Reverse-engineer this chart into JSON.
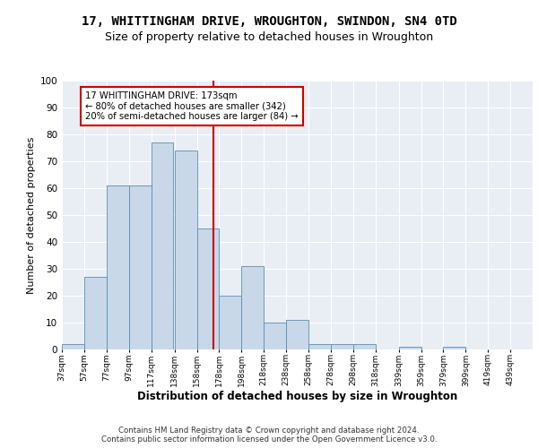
{
  "title1": "17, WHITTINGHAM DRIVE, WROUGHTON, SWINDON, SN4 0TD",
  "title2": "Size of property relative to detached houses in Wroughton",
  "xlabel": "Distribution of detached houses by size in Wroughton",
  "ylabel": "Number of detached properties",
  "bin_labels": [
    "37sqm",
    "57sqm",
    "77sqm",
    "97sqm",
    "117sqm",
    "138sqm",
    "158sqm",
    "178sqm",
    "198sqm",
    "218sqm",
    "238sqm",
    "258sqm",
    "278sqm",
    "298sqm",
    "318sqm",
    "339sqm",
    "359sqm",
    "379sqm",
    "399sqm",
    "419sqm",
    "439sqm"
  ],
  "bin_edges": [
    37,
    57,
    77,
    97,
    117,
    138,
    158,
    178,
    198,
    218,
    238,
    258,
    278,
    298,
    318,
    339,
    359,
    379,
    399,
    419,
    439,
    459
  ],
  "bar_values": [
    2,
    27,
    61,
    61,
    77,
    74,
    45,
    20,
    31,
    10,
    11,
    2,
    2,
    2,
    0,
    1,
    0,
    1,
    0,
    0,
    0
  ],
  "bar_color": "#c8d8e8",
  "bar_edge_color": "#5b8db0",
  "vline_x": 173,
  "vline_color": "#cc0000",
  "annotation_text": "17 WHITTINGHAM DRIVE: 173sqm\n← 80% of detached houses are smaller (342)\n20% of semi-detached houses are larger (84) →",
  "annotation_box_color": "#ffffff",
  "annotation_box_edge": "#cc0000",
  "ylim": [
    0,
    100
  ],
  "yticks": [
    0,
    10,
    20,
    30,
    40,
    50,
    60,
    70,
    80,
    90,
    100
  ],
  "bg_color": "#e8eef4",
  "footer1": "Contains HM Land Registry data © Crown copyright and database right 2024.",
  "footer2": "Contains public sector information licensed under the Open Government Licence v3.0.",
  "title1_fontsize": 10,
  "title2_fontsize": 9,
  "xlabel_fontsize": 8.5,
  "ylabel_fontsize": 8
}
